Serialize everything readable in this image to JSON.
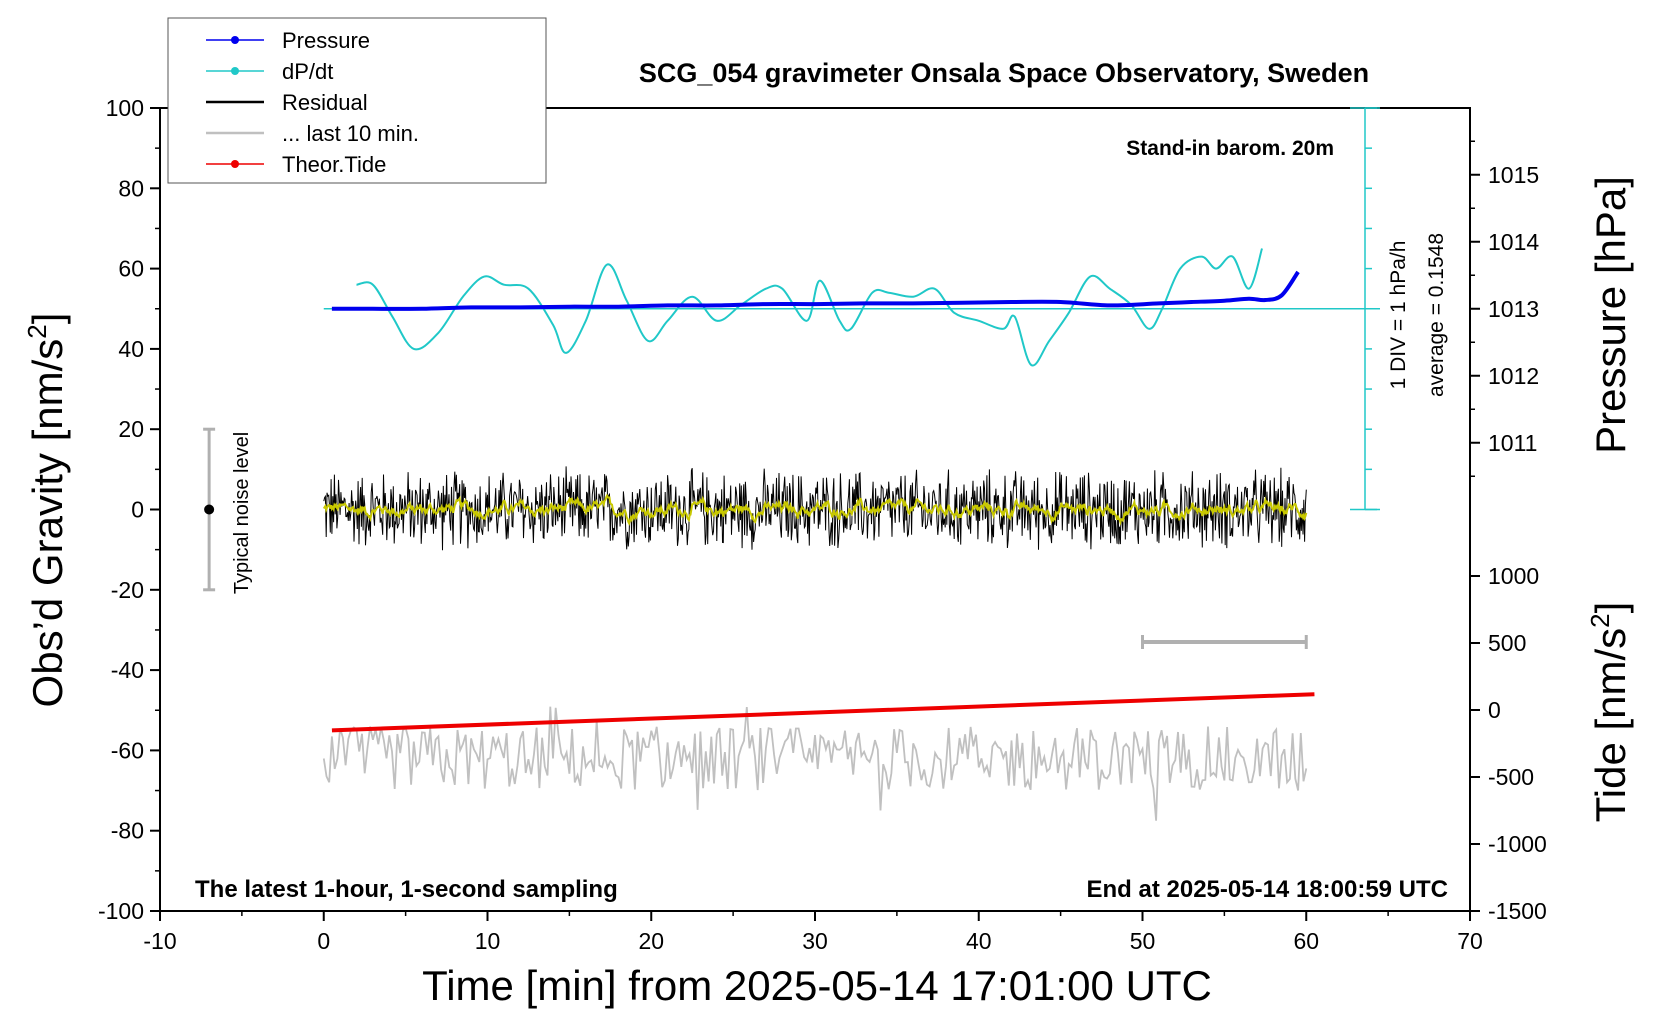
{
  "chart_data": {
    "type": "line",
    "title": "SCG_054 gravimeter Onsala Space Observatory, Sweden",
    "xlabel": "Time [min] from 2025-05-14 17:01:00 UTC",
    "ylabel_left": "Obs’d Gravity [nm/s",
    "ylabel_left_sup": "2",
    "ylabel_left_end": "]",
    "ylabel_right_pressure": "Pressure [hPa]",
    "ylabel_right_tide": "Tide [nm/s",
    "ylabel_right_tide_sup": "2",
    "ylabel_right_tide_end": "]",
    "xlim": [
      -10,
      70
    ],
    "ylim": [
      -100,
      100
    ],
    "x_ticks": [
      "-10",
      "0",
      "10",
      "20",
      "30",
      "40",
      "50",
      "60",
      "70"
    ],
    "y_ticks": [
      "100",
      "80",
      "60",
      "40",
      "20",
      "0",
      "-20",
      "-40",
      "-60",
      "-80",
      "-100"
    ],
    "pressure_ticks": [
      "1015",
      "1014",
      "1013",
      "1012",
      "1011"
    ],
    "tide_ticks": [
      "1000",
      "500",
      "0",
      "-500",
      "-1000",
      "-1500"
    ],
    "pressure_range_hpa": [
      1010,
      1016
    ],
    "tide_range_nms2": [
      -1500,
      1000
    ],
    "annotations": {
      "barometer": "Stand-in barom. 20m",
      "scale_div": "1 DIV = 1 hPa/h",
      "average": "average = 0.1548",
      "noise_label": "Typical noise level",
      "sampling": "The latest 1-hour, 1-second sampling",
      "end_time": "End at 2025-05-14 18:00:59 UTC"
    },
    "legend": {
      "placement": "top-left",
      "entries": [
        {
          "label": "Pressure",
          "color": "#0000ee",
          "marker": true
        },
        {
          "label": "dP/dt",
          "color": "#20c8c8",
          "marker": true
        },
        {
          "label": "Residual",
          "color": "#000000",
          "marker": false
        },
        {
          "label": "... last 10 min.",
          "color": "#c0c0c0",
          "marker": false
        },
        {
          "label": "Theor.Tide",
          "color": "#ee0000",
          "marker": true
        }
      ]
    },
    "colors": {
      "pressure": "#0000ee",
      "dpdt": "#20c8c8",
      "residual": "#000000",
      "residual_smooth": "#c8c800",
      "last10": "#c0c0c0",
      "tide": "#ee0000",
      "noise_bar": "#b0b0b0"
    },
    "series": [
      {
        "name": "Pressure",
        "unit": "hPa",
        "x": [
          0.5,
          3,
          6,
          9,
          12,
          15,
          18,
          21,
          24,
          27,
          30,
          33,
          36,
          39,
          42,
          45,
          48,
          51,
          53,
          55,
          56.5,
          57.5,
          58.5,
          59.5
        ],
        "values": [
          1013.0,
          1013.0,
          1013.0,
          1013.02,
          1013.02,
          1013.03,
          1013.03,
          1013.05,
          1013.05,
          1013.07,
          1013.07,
          1013.08,
          1013.08,
          1013.09,
          1013.1,
          1013.1,
          1013.05,
          1013.08,
          1013.1,
          1013.12,
          1013.15,
          1013.13,
          1013.2,
          1013.55
        ]
      },
      {
        "name": "dP/dt",
        "unit": "nm/s2-scaled",
        "x": [
          2,
          3,
          4.2,
          5.5,
          7,
          8.5,
          9.8,
          11,
          12.5,
          14,
          14.8,
          16,
          17.3,
          18.5,
          19.8,
          21,
          22.5,
          24,
          25.5,
          27,
          28,
          29.5,
          30.3,
          31.5,
          32.2,
          33.5,
          34.5,
          36,
          37.3,
          38.5,
          40,
          41.5,
          42.2,
          43.2,
          44.3,
          45.5,
          46.8,
          48,
          49.3,
          50.4,
          51.2,
          52.3,
          53.6,
          54.5,
          55.5,
          56.5,
          57.3
        ],
        "values": [
          56,
          56,
          48,
          40,
          44,
          53,
          58,
          56,
          55,
          46,
          39,
          47,
          61,
          52,
          42,
          47,
          53,
          47,
          51,
          55,
          55,
          47,
          57,
          47,
          45,
          54,
          54,
          53,
          55,
          49,
          47,
          45,
          48,
          36,
          42,
          49,
          58,
          55,
          51,
          45,
          50,
          60,
          63,
          60,
          63,
          55,
          65
        ]
      },
      {
        "name": "Theor.Tide",
        "unit": "nm/s2",
        "x": [
          0.5,
          60.5
        ],
        "values": [
          -55,
          -46
        ]
      }
    ],
    "residual_stats": {
      "x_range": [
        0,
        60
      ],
      "amplitude": 8,
      "last10_offset": -62
    },
    "noise_bar": {
      "x": -7,
      "ylim": [
        -20,
        20
      ]
    },
    "scale_bar_10min": {
      "x": [
        50,
        60
      ],
      "y": -33
    }
  }
}
